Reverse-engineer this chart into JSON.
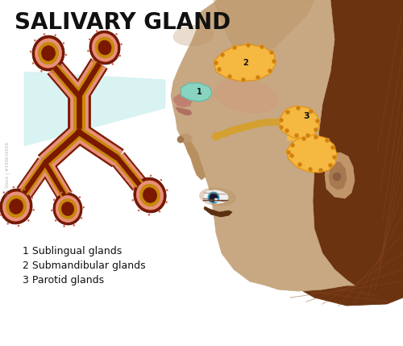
{
  "title": "SALIVARY GLAND",
  "title_fontsize": 20,
  "bg_color": "#ffffff",
  "label1": "1 Sublingual glands",
  "label2": "2 Submandibular glands",
  "label3": "3 Parotid glands",
  "label_fontsize": 9,
  "skin_color": "#C8A882",
  "skin_shadow": "#B89060",
  "hair_color": "#6B3310",
  "hair_mid": "#7A3D18",
  "gland_color": "#F5B840",
  "gland_dark": "#E09010",
  "gland_dot": "#D08010",
  "sublingual_color": "#88D4C0",
  "duct_color": "#D4A030",
  "acini_dark": "#7A1800",
  "acini_med": "#C05030",
  "acini_salmon": "#E8907A",
  "acini_gold": "#C8880A",
  "acini_lumen": "#8B3010",
  "beam_color": "#C0ECEC",
  "eye_white": "#F0F0F0",
  "eye_blue": "#3090B8",
  "eye_dark": "#1A1828",
  "number_color": "#111111",
  "text_color": "#111111",
  "cheek_blush": "#D4907A"
}
